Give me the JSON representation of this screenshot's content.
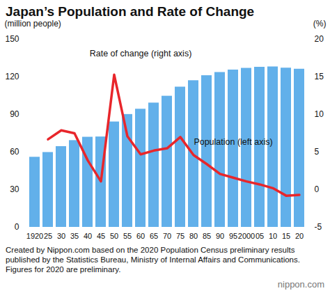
{
  "chart_data": {
    "type": "bar",
    "title": "Japan’s Population and Rate of Change",
    "categories": [
      "1920",
      "25",
      "30",
      "35",
      "40",
      "45",
      "50",
      "55",
      "60",
      "65",
      "70",
      "75",
      "80",
      "85",
      "90",
      "95",
      "2000",
      "05",
      "10",
      "15",
      "20"
    ],
    "series": [
      {
        "name": "Population (left axis)",
        "type": "bar",
        "color": "#62b0ea",
        "values": [
          55.96,
          59.74,
          64.45,
          69.25,
          71.93,
          72.15,
          84.12,
          90.08,
          94.3,
          99.21,
          104.67,
          111.94,
          117.06,
          121.05,
          123.61,
          125.57,
          126.93,
          127.77,
          128.06,
          127.09,
          126.23
        ]
      },
      {
        "name": "Rate of change (right axis)",
        "type": "line",
        "axis": "y2",
        "color": "#e8262b",
        "values": [
          null,
          6.7,
          7.9,
          7.5,
          3.9,
          1.1,
          15.3,
          7.1,
          4.7,
          5.2,
          5.5,
          7.0,
          4.6,
          3.4,
          2.1,
          1.6,
          1.1,
          0.7,
          0.2,
          -0.8,
          -0.7
        ]
      }
    ],
    "ylabel": "(million people)",
    "ylim": [
      0,
      150
    ],
    "yticks": [
      0,
      30,
      60,
      90,
      120,
      150
    ],
    "y2label": "(%)",
    "y2lim": [
      -5,
      20
    ],
    "y2ticks": [
      -5,
      0,
      5,
      10,
      15,
      20
    ],
    "grid": false,
    "caption": "Created by Nippon.com based on the 2020 Population Census preliminary results published by the Statistics Bureau, Ministry of Internal Affairs and Communications. Figures for 2020 are preliminary.",
    "logo": "nippon.com"
  }
}
